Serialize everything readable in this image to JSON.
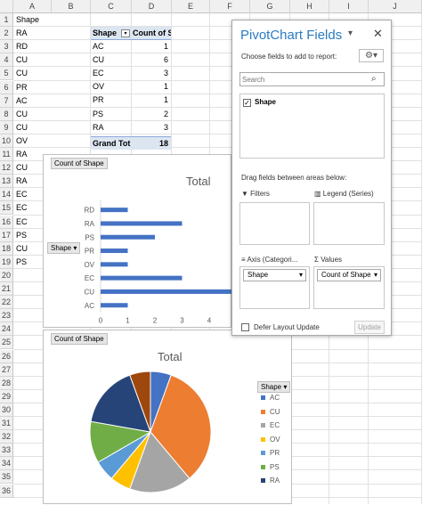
{
  "sheet": {
    "columns": [
      "A",
      "B",
      "C",
      "D",
      "E",
      "F",
      "G",
      "H",
      "I",
      "J"
    ],
    "rows": [
      "1",
      "2",
      "3",
      "4",
      "5",
      "6",
      "7",
      "8",
      "9",
      "10",
      "11",
      "12",
      "13",
      "14",
      "15",
      "16",
      "17",
      "18",
      "19",
      "20",
      "21",
      "22",
      "23",
      "24",
      "25",
      "26",
      "27",
      "28",
      "29",
      "30",
      "31",
      "32",
      "33",
      "34",
      "35",
      "36"
    ],
    "col_a": [
      "Shape",
      "RA",
      "RD",
      "CU",
      "CU",
      "PR",
      "AC",
      "CU",
      "CU",
      "OV",
      "RA",
      "CU",
      "RA",
      "EC",
      "EC",
      "EC",
      "PS",
      "CU",
      "PS"
    ]
  },
  "pivot": {
    "header_shape": "Shape",
    "header_count": "Count of Shape",
    "rows": [
      {
        "label": "AC",
        "count": "1"
      },
      {
        "label": "CU",
        "count": "6"
      },
      {
        "label": "EC",
        "count": "3"
      },
      {
        "label": "OV",
        "count": "1"
      },
      {
        "label": "PR",
        "count": "1"
      },
      {
        "label": "PS",
        "count": "2"
      },
      {
        "label": "RA",
        "count": "3"
      },
      {
        "label": "RD",
        "count": "1"
      }
    ],
    "grand_total_label": "Grand Tot",
    "grand_total_value": "18"
  },
  "bar_chart_ui": {
    "value_field_button": "Count of Shape",
    "axis_field_button": "Shape"
  },
  "pie_chart_ui": {
    "value_field_button": "Count of Shape",
    "legend_header": "Shape"
  },
  "chart_data": [
    {
      "type": "bar",
      "title": "Total",
      "categories": [
        "AC",
        "CU",
        "EC",
        "OV",
        "PR",
        "PS",
        "RA",
        "RD"
      ],
      "values": [
        1,
        6,
        3,
        1,
        1,
        2,
        3,
        1
      ],
      "xticks": [
        "0",
        "1",
        "2",
        "3",
        "4"
      ],
      "color": "#4472c4",
      "legend": "none"
    },
    {
      "type": "pie",
      "title": "Total",
      "categories": [
        "AC",
        "CU",
        "EC",
        "OV",
        "PR",
        "PS",
        "RA",
        "RD"
      ],
      "values": [
        1,
        6,
        3,
        1,
        1,
        2,
        3,
        1
      ],
      "colors": [
        "#4472c4",
        "#ed7d31",
        "#a5a5a5",
        "#ffc000",
        "#5b9bd5",
        "#70ad47",
        "#264478",
        "#9e480e"
      ],
      "legend_entries": [
        "AC",
        "CU",
        "EC",
        "OV",
        "PR",
        "PS",
        "RA"
      ],
      "legend": "right"
    }
  ],
  "panel": {
    "title": "PivotChart Fields",
    "choose_text": "Choose fields to add to report:",
    "search_placeholder": "Search",
    "field_label": "Shape",
    "drag_text": "Drag fields between areas below:",
    "filters_label": "Filters",
    "legend_label": "Legend (Series)",
    "axis_label": "Axis (Categori...",
    "values_label": "Values",
    "axis_item": "Shape",
    "values_item": "Count of Shape",
    "defer_label": "Defer Layout Update",
    "update_label": "Update"
  }
}
